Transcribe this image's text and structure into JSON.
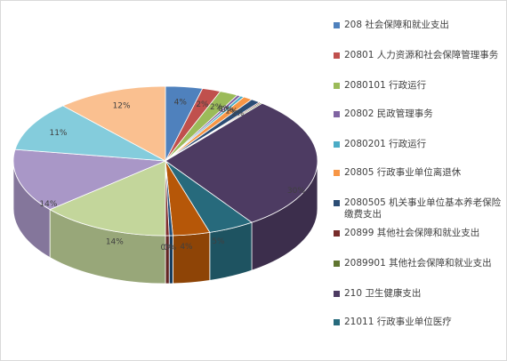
{
  "chart_data": {
    "type": "pie",
    "legend_position": "right",
    "series": [
      {
        "name": "208  社会保障和就业支出",
        "value": 4,
        "label": "4%",
        "color": "#4F81BD"
      },
      {
        "name": "20801  人力资源和社会保障管理事务",
        "value": 2,
        "label": "2%",
        "color": "#C0504D"
      },
      {
        "name": "2080101    行政运行",
        "value": 2,
        "label": "2%",
        "color": "#9BBB59"
      },
      {
        "name": "20802  民政管理事务",
        "value": 0.4,
        "label": "0%",
        "color": "#8064A2"
      },
      {
        "name": "2080201    行政运行",
        "value": 0.4,
        "label": "0%",
        "color": "#4BACC6"
      },
      {
        "name": "20805  行政事业单位离退休",
        "value": 1,
        "label": "1%",
        "color": "#F79646"
      },
      {
        "name": "2080505    机关事业单位基本养老保险缴费支出",
        "value": 1,
        "label": "1%",
        "color": "#2C4D75"
      },
      {
        "name": "20899  其他社会保障和就业支出",
        "value": 0.2,
        "label": "",
        "color": "#772C2A"
      },
      {
        "name": "2089901    其他社会保障和就业支出",
        "value": 0.2,
        "label": "",
        "color": "#5F7530"
      },
      {
        "name": "210  卫生健康支出",
        "value": 30,
        "label": "30%",
        "color": "#4D3B62"
      },
      {
        "name": "21011  行政事业单位医疗",
        "value": 5,
        "label": "5%",
        "color": "#276A7C"
      },
      {
        "name": "",
        "value": 4,
        "label": "4%",
        "color": "#B65708"
      },
      {
        "name": "",
        "value": 0.4,
        "label": "0%",
        "color": "#1F4E79"
      },
      {
        "name": "",
        "value": 0.4,
        "label": "0%",
        "color": "#7F2F2C"
      },
      {
        "name": "",
        "value": 14,
        "label": "14%",
        "color": "#C3D69B"
      },
      {
        "name": "",
        "value": 14,
        "label": "14%",
        "color": "#A997C7"
      },
      {
        "name": "",
        "value": 11,
        "label": "11%",
        "color": "#84CCDC"
      },
      {
        "name": "",
        "value": 12,
        "label": "12%",
        "color": "#FAC090"
      }
    ],
    "legend_visible": [
      "208  社会保障和就业支出",
      "20801  人力资源和社会保障管理事务",
      "2080101    行政运行",
      "20802  民政管理事务",
      "2080201    行政运行",
      "20805  行政事业单位离退休",
      "2080505    机关事业单位基本养老保险缴费支出",
      "20899  其他社会保障和就业支出",
      "2089901    其他社会保障和就业支出",
      "210  卫生健康支出",
      "21011  行政事业单位医疗"
    ],
    "start_angle_deg": 0
  }
}
